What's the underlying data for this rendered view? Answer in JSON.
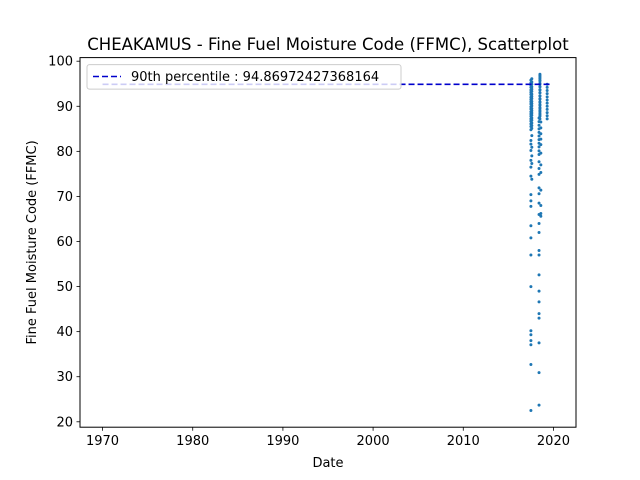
{
  "chart_data": {
    "type": "scatter",
    "title": "CHEAKAMUS - Fine Fuel Moisture Code (FFMC), Scatterplot",
    "xlabel": "Date",
    "ylabel": "Fine Fuel Moisture Code (FFMC)",
    "xlim": [
      1967.5,
      2022.5
    ],
    "ylim": [
      18.8,
      100.8
    ],
    "xticks": [
      1970,
      1980,
      1990,
      2000,
      2010,
      2020
    ],
    "yticks": [
      20,
      30,
      40,
      50,
      60,
      70,
      80,
      90,
      100
    ],
    "grid": false,
    "legend_position": "top-left",
    "colors": {
      "points": "#1f77b4",
      "reference_line": "#0000cc"
    },
    "reference_line": {
      "label": "90th percentile : 94.86972427368164",
      "y": 94.86972427368164,
      "x_range": [
        1970,
        2019.7
      ]
    },
    "series": [
      {
        "x": [
          2017.5,
          2017.5,
          2017.5,
          2017.5,
          2017.5,
          2017.5,
          2017.5,
          2017.5,
          2017.5,
          2017.5,
          2017.5,
          2017.5,
          2017.5,
          2017.5,
          2017.5,
          2017.5,
          2017.5,
          2017.5,
          2017.5,
          2017.5,
          2017.5,
          2017.5,
          2017.5,
          2017.5,
          2017.5,
          2017.5,
          2017.5,
          2017.5,
          2017.5,
          2017.5,
          2017.5,
          2017.5,
          2017.5,
          2017.5,
          2017.5,
          2017.5,
          2017.5,
          2017.5,
          2017.5,
          2017.5,
          2017.6,
          2017.6,
          2017.6,
          2017.6,
          2017.6,
          2017.6,
          2017.6,
          2017.6,
          2017.6,
          2017.6,
          2017.6,
          2017.6,
          2017.6,
          2017.6,
          2017.6,
          2017.6,
          2017.6,
          2017.6,
          2017.6,
          2017.6,
          2017.6,
          2017.6,
          2017.6,
          2017.6,
          2017.6,
          2017.6,
          2018.4,
          2018.4,
          2018.4,
          2018.4,
          2018.4,
          2018.4,
          2018.4,
          2018.4,
          2018.4,
          2018.4,
          2018.4,
          2018.4,
          2018.4,
          2018.4,
          2018.4,
          2018.4,
          2018.4,
          2018.4,
          2018.4,
          2018.4,
          2018.4,
          2018.4,
          2018.4,
          2018.4,
          2018.4,
          2018.4,
          2018.4,
          2018.4,
          2018.4,
          2018.4,
          2018.5,
          2018.5,
          2018.5,
          2018.5,
          2018.5,
          2018.5,
          2018.5,
          2018.5,
          2018.5,
          2018.5,
          2018.5,
          2018.5,
          2018.5,
          2018.5,
          2018.5,
          2018.5,
          2018.5,
          2018.5,
          2018.5,
          2018.5,
          2018.5,
          2018.5,
          2018.5,
          2018.5,
          2018.5,
          2018.5,
          2018.5,
          2018.5,
          2018.5,
          2018.5,
          2018.6,
          2018.6,
          2018.6,
          2018.6,
          2018.6,
          2018.6,
          2018.6,
          2018.6,
          2018.6,
          2018.6,
          2018.6,
          2018.6,
          2019.3,
          2019.3,
          2019.3,
          2019.3,
          2019.3,
          2019.3,
          2019.3,
          2019.3,
          2019.3,
          2019.3,
          2019.3,
          2019.3
        ],
        "y": [
          22.5,
          32.7,
          37.1,
          38.0,
          39.3,
          40.2,
          50.0,
          57.0,
          60.8,
          63.5,
          67.8,
          69.0,
          70.4,
          74.5,
          76.5,
          78.0,
          80.2,
          81.6,
          82.4,
          84.8,
          85.5,
          86.1,
          86.7,
          87.2,
          87.8,
          88.3,
          88.8,
          89.4,
          89.9,
          90.5,
          91.0,
          91.5,
          92.0,
          92.6,
          93.1,
          93.6,
          94.2,
          94.7,
          95.2,
          95.8,
          96.1,
          95.4,
          94.9,
          94.3,
          93.8,
          93.3,
          92.7,
          92.2,
          91.7,
          91.1,
          90.6,
          90.1,
          89.5,
          89.0,
          88.5,
          88.0,
          87.4,
          86.9,
          86.3,
          85.7,
          85.1,
          83.5,
          80.9,
          79.0,
          77.3,
          73.8,
          23.7,
          30.9,
          37.5,
          43.0,
          44.0,
          46.6,
          49.0,
          52.6,
          57.0,
          58.0,
          62.0,
          64.0,
          66.0,
          68.5,
          70.6,
          71.9,
          74.9,
          76.2,
          77.7,
          79.3,
          80.1,
          81.0,
          81.8,
          82.6,
          83.4,
          84.2,
          85.0,
          85.8,
          86.6,
          87.4,
          88.1,
          88.8,
          89.5,
          90.2,
          90.9,
          91.6,
          92.3,
          93.0,
          93.7,
          94.4,
          95.1,
          95.8,
          96.5,
          97.1,
          96.8,
          96.2,
          95.6,
          94.9,
          94.3,
          93.6,
          93.0,
          92.3,
          91.7,
          91.0,
          90.4,
          89.7,
          89.1,
          88.4,
          87.8,
          87.2,
          86.5,
          85.2,
          83.9,
          82.7,
          81.5,
          79.6,
          77.0,
          75.3,
          71.4,
          68.0,
          65.6,
          66.2,
          87.2,
          87.9,
          88.6,
          89.3,
          90.0,
          90.7,
          91.4,
          92.1,
          92.8,
          93.5,
          94.2,
          94.9
        ]
      }
    ]
  }
}
